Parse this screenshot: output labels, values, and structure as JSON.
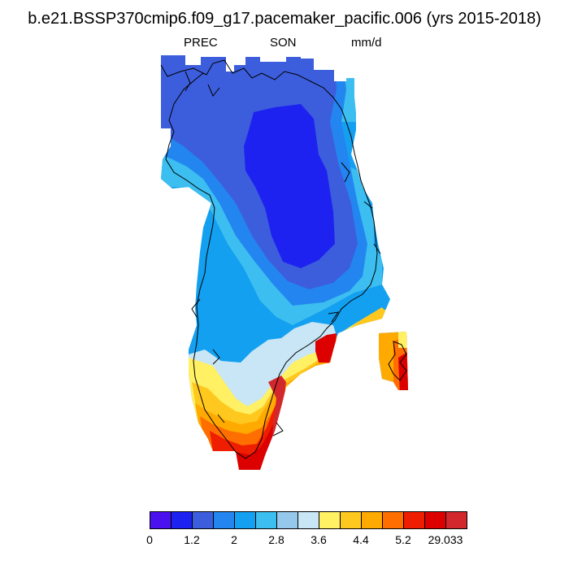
{
  "title": "b.e21.BSSP370cmip6.f09_g17.pacemaker_pacific.006 (yrs 2015-2018)",
  "subtitle_left": "PREC",
  "subtitle_center": "SON",
  "subtitle_right": "mm/d",
  "colorbar": {
    "colors": [
      "#4a12ee",
      "#1e22f0",
      "#3c5edc",
      "#2386f0",
      "#14a0f0",
      "#3cbef0",
      "#96c8ec",
      "#c8e6f5",
      "#fff064",
      "#ffc81e",
      "#ffaa00",
      "#ff6e00",
      "#f01e00",
      "#dc0000",
      "#d2282d"
    ],
    "labels": [
      "0",
      "1.2",
      "2",
      "2.8",
      "3.6",
      "4.4",
      "5.2",
      "29.033"
    ]
  },
  "map": {
    "region": "Greenland",
    "variable": "PREC",
    "units": "mm/d"
  }
}
